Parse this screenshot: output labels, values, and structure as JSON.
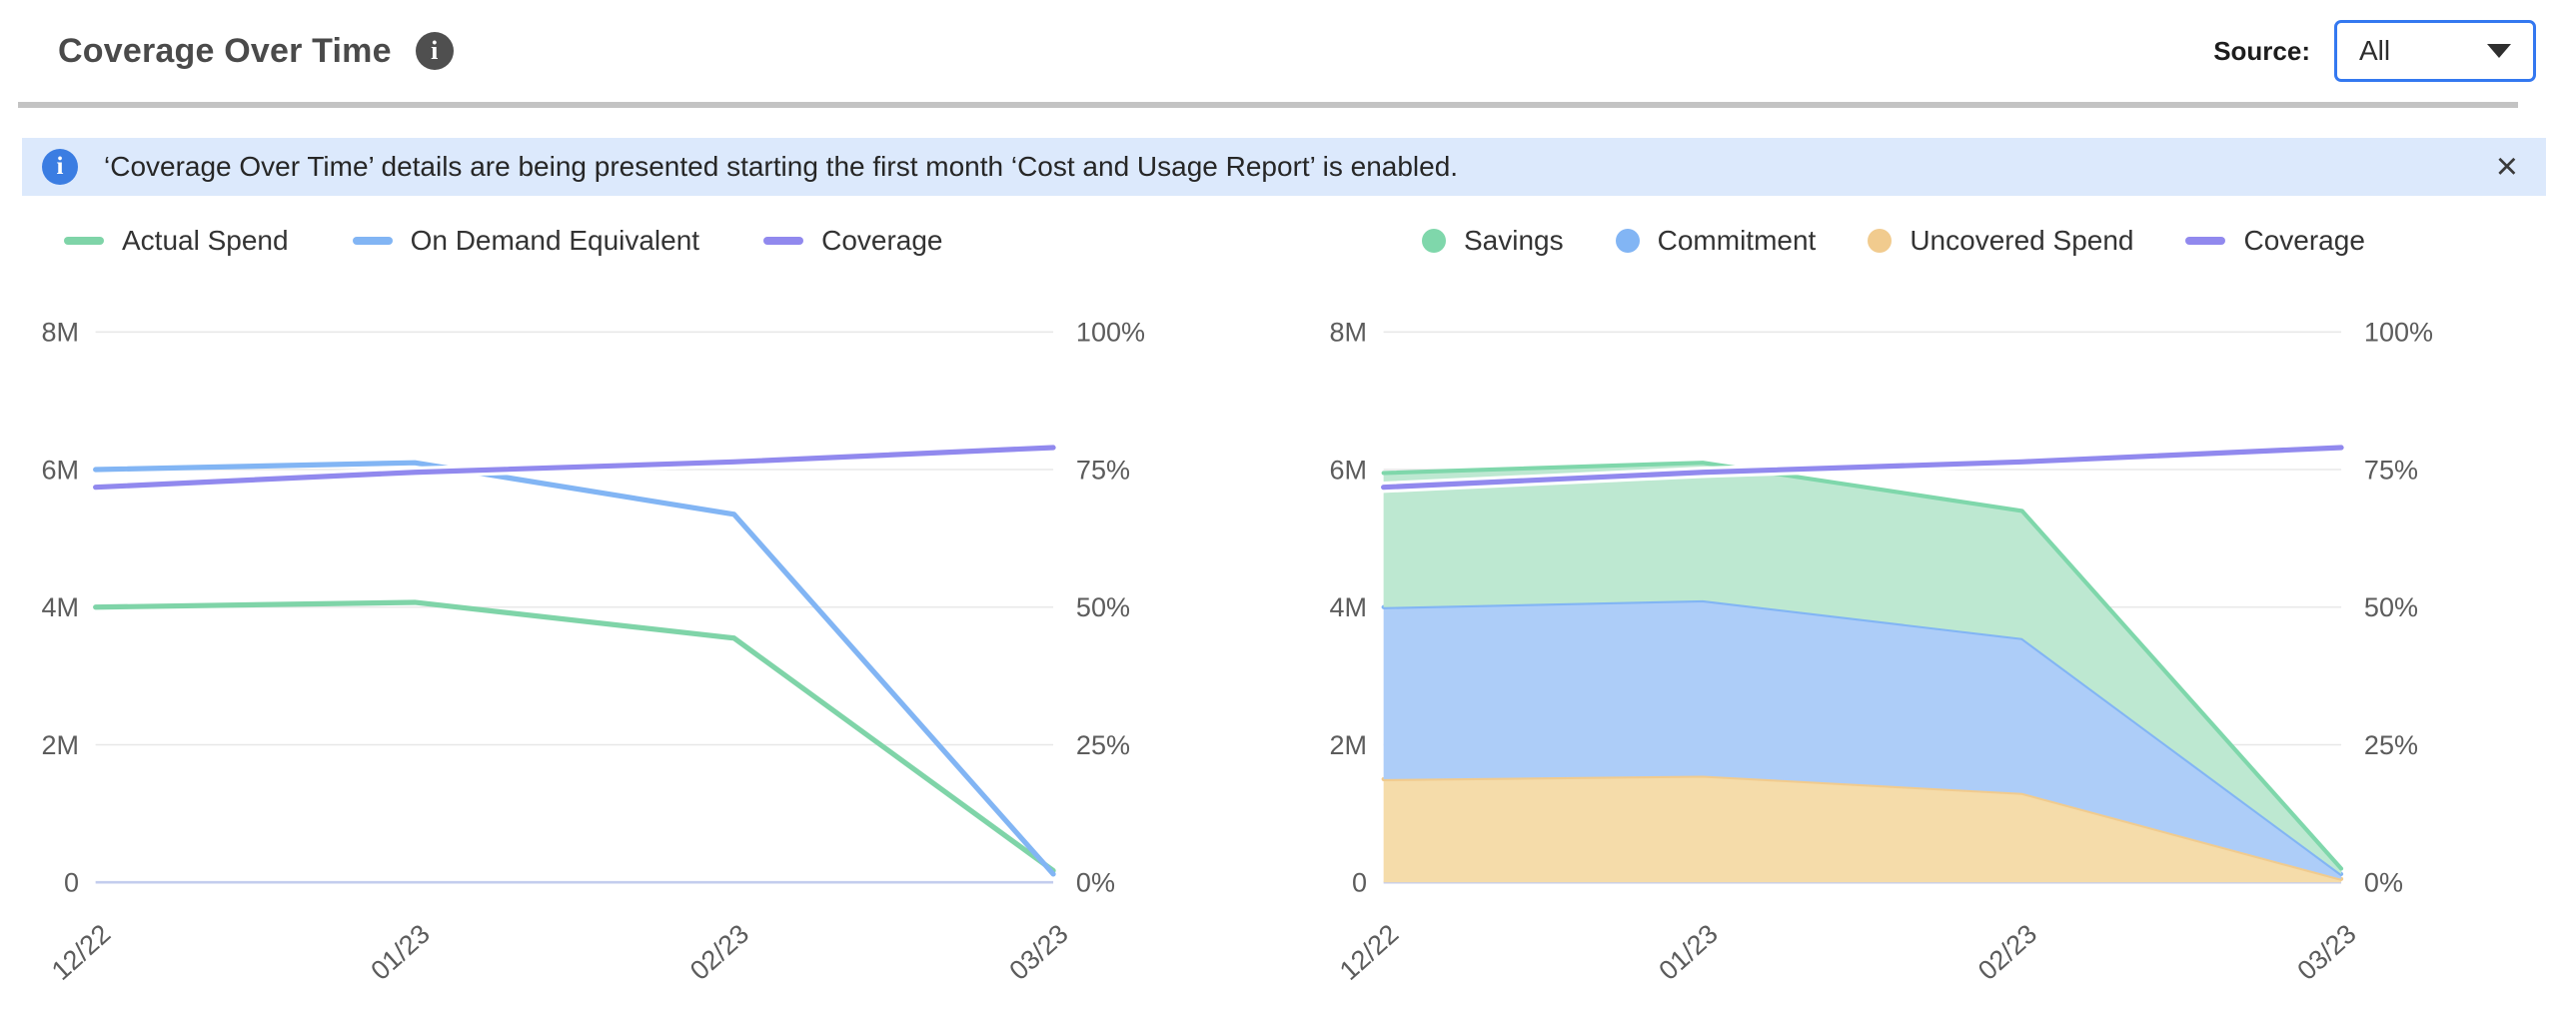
{
  "header": {
    "title": "Coverage Over Time",
    "source_label": "Source:",
    "source_value": "All"
  },
  "banner": {
    "text": "‘Coverage Over Time’ details are being presented starting the first month ‘Cost and Usage Report’ is enabled.",
    "close_label": "×"
  },
  "colors": {
    "green_line": "#7fd4a8",
    "green_fill": "#bde8d1",
    "blue_line": "#82b5f4",
    "blue_fill": "#adcdf8",
    "purple_line": "#9189ee",
    "orange_line": "#f1cb8e",
    "orange_fill": "#f5dcaa",
    "grid_line": "#e8e8e8",
    "zero_line": "#c3cdee",
    "axis_text": "#5c5c5c",
    "banner_bg": "#dce9fc",
    "banner_icon_bg": "#3b7de2",
    "dropdown_border": "#3478f0",
    "title_icon_bg": "#4f4f4f",
    "divider": "#c3c3c3"
  },
  "chart_data": [
    {
      "type": "line",
      "title": "",
      "x": [
        "12/22",
        "01/23",
        "02/23",
        "03/23"
      ],
      "y_left_labels": [
        "8M",
        "6M",
        "4M",
        "2M",
        "0"
      ],
      "y_right_labels": [
        "100%",
        "75%",
        "50%",
        "25%",
        "0%"
      ],
      "y_left_lim": [
        0,
        8
      ],
      "y_right_lim": [
        0,
        100
      ],
      "grid": true,
      "legend_position": "top-left",
      "series": [
        {
          "name": "Actual Spend",
          "render": "line",
          "axis": "left",
          "marker": "dash",
          "color": "#7fd4a8",
          "values": [
            4.0,
            4.07,
            3.55,
            0.17
          ]
        },
        {
          "name": "On Demand Equivalent",
          "render": "line",
          "axis": "left",
          "marker": "dash",
          "color": "#82b5f4",
          "values": [
            6.0,
            6.1,
            5.35,
            0.12
          ]
        },
        {
          "name": "Coverage",
          "render": "line",
          "axis": "right",
          "marker": "dash",
          "color": "#9189ee",
          "halo": true,
          "values": [
            71.8,
            74.5,
            76.4,
            79.0
          ]
        }
      ]
    },
    {
      "type": "area",
      "title": "",
      "x": [
        "12/22",
        "01/23",
        "02/23",
        "03/23"
      ],
      "y_left_labels": [
        "8M",
        "6M",
        "4M",
        "2M",
        "0"
      ],
      "y_right_labels": [
        "100%",
        "75%",
        "50%",
        "25%",
        "0%"
      ],
      "y_left_lim": [
        0,
        8
      ],
      "y_right_lim": [
        0,
        100
      ],
      "grid": true,
      "legend_position": "top-left",
      "stack_order": [
        "Uncovered Spend",
        "Commitment",
        "Savings"
      ],
      "series": [
        {
          "name": "Savings",
          "render": "area",
          "axis": "left",
          "marker": "circle",
          "color": "#7fd7ab",
          "fill": "#bde8d1",
          "values": [
            1.95,
            2.0,
            1.85,
            0.08
          ]
        },
        {
          "name": "Commitment",
          "render": "area",
          "axis": "left",
          "marker": "circle",
          "color": "#82b5f4",
          "fill": "#adcdf8",
          "values": [
            2.5,
            2.55,
            2.25,
            0.07
          ]
        },
        {
          "name": "Uncovered Spend",
          "render": "area",
          "axis": "left",
          "marker": "circle",
          "color": "#f1cb8e",
          "fill": "#f5dcaa",
          "values": [
            1.5,
            1.55,
            1.3,
            0.05
          ]
        },
        {
          "name": "Coverage",
          "render": "line",
          "axis": "right",
          "marker": "dash",
          "color": "#9189ee",
          "halo": true,
          "values": [
            71.8,
            74.5,
            76.4,
            79.0
          ]
        }
      ]
    }
  ]
}
